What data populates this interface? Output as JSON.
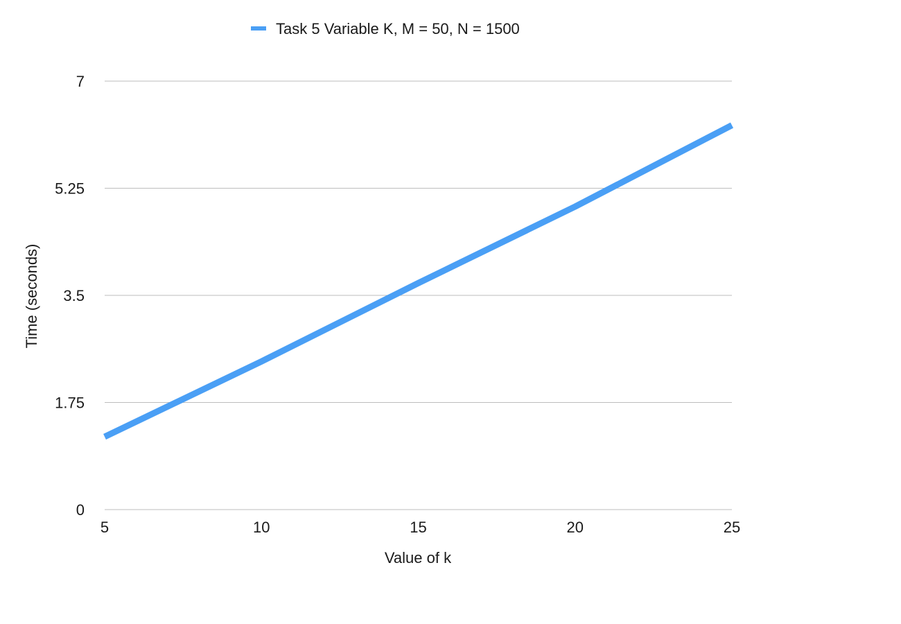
{
  "chart_data": {
    "type": "line",
    "title": "",
    "xlabel": "Value of k",
    "ylabel": "Time (seconds)",
    "x_ticks": [
      "5",
      "10",
      "15",
      "20",
      "25"
    ],
    "y_ticks": [
      "0",
      "1.75",
      "3.5",
      "5.25",
      "7"
    ],
    "xlim": [
      5,
      25
    ],
    "ylim": [
      0,
      7
    ],
    "grid": "horizontal",
    "legend_position": "top-center",
    "series": [
      {
        "name": "Task 5 Variable K, M = 50, N = 1500",
        "color": "#4A9FF5",
        "x": [
          5,
          10,
          15,
          20,
          25
        ],
        "y": [
          1.19,
          2.42,
          3.7,
          4.95,
          6.28
        ]
      }
    ]
  }
}
